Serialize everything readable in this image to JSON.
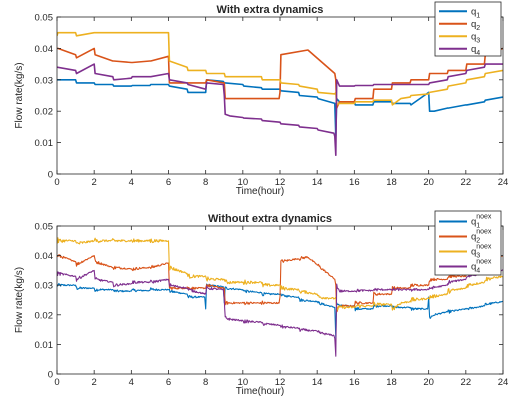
{
  "chart_data": [
    {
      "type": "line",
      "title": "With extra dynamics",
      "xlabel": "Time(hour)",
      "ylabel": "Flow rate(kg/s)",
      "xlim": [
        0,
        24
      ],
      "ylim": [
        0,
        0.05
      ],
      "xticks": [
        "0",
        "2",
        "4",
        "6",
        "8",
        "10",
        "12",
        "14",
        "16",
        "18",
        "20",
        "22",
        "24"
      ],
      "yticks": [
        "0",
        "0.01",
        "0.02",
        "0.03",
        "0.04",
        "0.05"
      ],
      "grid": false,
      "legend_position": "top-right",
      "series": [
        {
          "name": "q",
          "subscript": "1",
          "color": "#0072BD",
          "noise": 0,
          "x": [
            0,
            1,
            1.05,
            2,
            2.05,
            3,
            3.05,
            4,
            4.05,
            5,
            5.05,
            6,
            6.05,
            7,
            7.05,
            8,
            8.05,
            8.95,
            9,
            9.05,
            10,
            10.05,
            11,
            11.05,
            12,
            12.05,
            13,
            13.05,
            14,
            14.05,
            14.95,
            15,
            15.05,
            15.2,
            16,
            16.05,
            17,
            17.05,
            18,
            18.05,
            19,
            19.05,
            20,
            20.05,
            20.3,
            21,
            21.05,
            22,
            22.05,
            23,
            23.05,
            24
          ],
          "y": [
            0.03,
            0.03,
            0.029,
            0.029,
            0.0285,
            0.0285,
            0.028,
            0.028,
            0.0282,
            0.0282,
            0.0285,
            0.0285,
            0.028,
            0.027,
            0.026,
            0.026,
            0.03,
            0.0295,
            0.029,
            0.029,
            0.0285,
            0.028,
            0.0275,
            0.027,
            0.027,
            0.0265,
            0.026,
            0.025,
            0.0245,
            0.024,
            0.0225,
            0.012,
            0.024,
            0.023,
            0.023,
            0.022,
            0.022,
            0.023,
            0.023,
            0.0225,
            0.0225,
            0.022,
            0.026,
            0.02,
            0.02,
            0.021,
            0.021,
            0.022,
            0.022,
            0.023,
            0.0235,
            0.0245
          ]
        },
        {
          "name": "q",
          "subscript": "2",
          "color": "#D95319",
          "noise": 0,
          "x": [
            0,
            0.05,
            1,
            1.05,
            2,
            2.05,
            3,
            3.05,
            4,
            4.05,
            5,
            5.05,
            6,
            6.05,
            8,
            8.05,
            8.95,
            9,
            9.05,
            11.95,
            12,
            12.05,
            13.5,
            14.95,
            15,
            15.05,
            15.2,
            16,
            16.05,
            17,
            17.05,
            18,
            18.05,
            19,
            19.05,
            20,
            20.05,
            21,
            21.05,
            22,
            22.05,
            23,
            23.05,
            24
          ],
          "y": [
            0.04,
            0.04,
            0.038,
            0.037,
            0.04,
            0.038,
            0.036,
            0.036,
            0.0355,
            0.0355,
            0.036,
            0.036,
            0.0375,
            0.029,
            0.029,
            0.03,
            0.029,
            0.029,
            0.024,
            0.024,
            0.026,
            0.038,
            0.0395,
            0.032,
            0.03,
            0.021,
            0.023,
            0.023,
            0.024,
            0.024,
            0.027,
            0.027,
            0.029,
            0.029,
            0.03,
            0.03,
            0.032,
            0.032,
            0.033,
            0.033,
            0.035,
            0.035,
            0.038,
            0.04
          ]
        },
        {
          "name": "q",
          "subscript": "3",
          "color": "#EDB120",
          "noise": 0,
          "x": [
            0,
            0.05,
            1,
            1.05,
            2,
            2.05,
            3,
            4,
            5,
            6,
            6.05,
            7,
            7.05,
            8,
            8.05,
            9,
            9.05,
            10,
            10.05,
            11,
            11.05,
            12,
            12.05,
            13,
            13.05,
            14,
            14.05,
            14.95,
            15,
            15.05,
            15.2,
            16,
            16.05,
            17,
            17.05,
            18,
            18.05,
            18.5,
            19,
            19.05,
            20,
            20.05,
            21,
            21.05,
            22,
            22.05,
            23,
            23.05,
            24
          ],
          "y": [
            0.044,
            0.045,
            0.045,
            0.044,
            0.045,
            0.045,
            0.045,
            0.045,
            0.045,
            0.045,
            0.036,
            0.034,
            0.033,
            0.033,
            0.032,
            0.032,
            0.031,
            0.031,
            0.031,
            0.031,
            0.03,
            0.03,
            0.029,
            0.0285,
            0.028,
            0.027,
            0.026,
            0.0255,
            0.026,
            0.022,
            0.0225,
            0.0225,
            0.023,
            0.023,
            0.0235,
            0.0235,
            0.022,
            0.024,
            0.0245,
            0.025,
            0.0255,
            0.026,
            0.027,
            0.028,
            0.029,
            0.03,
            0.031,
            0.032,
            0.033
          ]
        },
        {
          "name": "q",
          "subscript": "4",
          "color": "#7E2F8E",
          "noise": 0,
          "x": [
            0,
            1,
            1.05,
            2,
            2.05,
            3,
            3.05,
            4,
            4.05,
            5,
            5.05,
            6,
            6.05,
            7,
            7.05,
            8,
            8.05,
            8.95,
            9,
            9.05,
            9.3,
            10,
            10.05,
            11,
            11.05,
            12,
            12.05,
            13,
            13.05,
            14,
            14.05,
            14.9,
            14.95,
            15,
            15.05,
            15.2,
            16,
            16.05,
            17,
            17.05,
            18,
            18.05,
            19,
            19.05,
            20,
            20.05,
            21,
            21.05,
            22,
            22.05,
            23,
            23.05,
            24
          ],
          "y": [
            0.034,
            0.033,
            0.032,
            0.035,
            0.032,
            0.031,
            0.03,
            0.0305,
            0.031,
            0.031,
            0.031,
            0.032,
            0.03,
            0.029,
            0.0285,
            0.027,
            0.029,
            0.0285,
            0.025,
            0.019,
            0.0185,
            0.018,
            0.0178,
            0.0175,
            0.017,
            0.0165,
            0.016,
            0.0155,
            0.015,
            0.0145,
            0.014,
            0.013,
            0.012,
            0.006,
            0.03,
            0.028,
            0.028,
            0.0282,
            0.0282,
            0.0285,
            0.0285,
            0.0285,
            0.0285,
            0.0285,
            0.0285,
            0.029,
            0.03,
            0.031,
            0.032,
            0.033,
            0.034,
            0.035,
            0.035
          ]
        }
      ]
    },
    {
      "type": "line",
      "title": "Without extra dynamics",
      "xlabel": "Time(hour)",
      "ylabel": "Flow rate(kg/s)",
      "xlim": [
        0,
        24
      ],
      "ylim": [
        0,
        0.05
      ],
      "xticks": [
        "0",
        "2",
        "4",
        "6",
        "8",
        "10",
        "12",
        "14",
        "16",
        "18",
        "20",
        "22",
        "24"
      ],
      "yticks": [
        "0",
        "0.01",
        "0.02",
        "0.03",
        "0.04",
        "0.05"
      ],
      "grid": false,
      "legend_position": "top-right",
      "series": [
        {
          "name": "q",
          "subscript": "1",
          "superscript": "noex",
          "color": "#0072BD",
          "noise": 0.0008,
          "x": [
            0,
            1,
            1.05,
            2,
            2.05,
            3,
            3.05,
            4,
            4.05,
            5,
            5.05,
            6,
            6.05,
            7,
            7.05,
            7.95,
            8,
            8.05,
            8.95,
            9,
            9.05,
            10,
            10.05,
            11,
            11.05,
            12,
            12.05,
            13,
            13.05,
            14,
            14.05,
            14.95,
            15,
            15.05,
            15.2,
            16,
            16.05,
            17,
            17.05,
            18,
            18.05,
            19,
            19.05,
            19.95,
            20,
            20.05,
            20.3,
            21,
            21.05,
            22,
            22.05,
            23,
            23.05,
            24
          ],
          "y": [
            0.03,
            0.03,
            0.029,
            0.029,
            0.0285,
            0.0285,
            0.028,
            0.028,
            0.0282,
            0.0282,
            0.0285,
            0.0285,
            0.028,
            0.027,
            0.026,
            0.026,
            0.022,
            0.03,
            0.0295,
            0.024,
            0.029,
            0.0285,
            0.028,
            0.0275,
            0.027,
            0.027,
            0.0265,
            0.026,
            0.025,
            0.0245,
            0.024,
            0.0225,
            0.012,
            0.024,
            0.023,
            0.023,
            0.022,
            0.022,
            0.023,
            0.023,
            0.0225,
            0.0225,
            0.022,
            0.022,
            0.026,
            0.019,
            0.02,
            0.021,
            0.021,
            0.022,
            0.022,
            0.023,
            0.0235,
            0.0245
          ]
        },
        {
          "name": "q",
          "subscript": "2",
          "superscript": "noex",
          "color": "#D95319",
          "noise": 0.0009,
          "x": [
            0,
            0.05,
            1,
            1.05,
            2,
            2.05,
            3,
            3.05,
            4,
            4.05,
            5,
            5.05,
            6,
            6.05,
            8,
            8.05,
            8.95,
            9,
            9.05,
            11.95,
            12,
            12.05,
            13.5,
            14.95,
            15,
            15.05,
            15.2,
            16,
            16.05,
            17,
            17.05,
            18,
            18.05,
            19,
            19.05,
            20,
            20.05,
            21,
            21.05,
            22,
            22.05,
            23,
            23.05,
            24
          ],
          "y": [
            0.04,
            0.04,
            0.038,
            0.037,
            0.04,
            0.038,
            0.036,
            0.036,
            0.0355,
            0.0355,
            0.036,
            0.036,
            0.0375,
            0.029,
            0.029,
            0.03,
            0.029,
            0.029,
            0.024,
            0.024,
            0.026,
            0.038,
            0.0395,
            0.032,
            0.03,
            0.021,
            0.023,
            0.023,
            0.024,
            0.024,
            0.027,
            0.027,
            0.029,
            0.029,
            0.03,
            0.03,
            0.032,
            0.032,
            0.033,
            0.033,
            0.035,
            0.035,
            0.038,
            0.04
          ]
        },
        {
          "name": "q",
          "subscript": "3",
          "superscript": "noex",
          "color": "#EDB120",
          "noise": 0.0012,
          "x": [
            0,
            0.05,
            1,
            1.05,
            2,
            2.05,
            3,
            4,
            5,
            6,
            6.05,
            7,
            7.05,
            8,
            8.05,
            9,
            9.05,
            10,
            10.05,
            11,
            11.05,
            12,
            12.05,
            13,
            13.05,
            14,
            14.05,
            14.95,
            15,
            15.05,
            15.2,
            16,
            16.05,
            17,
            17.05,
            18,
            18.05,
            18.5,
            19,
            19.05,
            20,
            20.05,
            21,
            21.05,
            22,
            22.05,
            23,
            23.05,
            24
          ],
          "y": [
            0.044,
            0.045,
            0.045,
            0.044,
            0.045,
            0.045,
            0.045,
            0.045,
            0.045,
            0.045,
            0.036,
            0.034,
            0.033,
            0.033,
            0.032,
            0.032,
            0.031,
            0.031,
            0.031,
            0.031,
            0.03,
            0.03,
            0.029,
            0.0285,
            0.028,
            0.027,
            0.026,
            0.0255,
            0.026,
            0.022,
            0.0225,
            0.0225,
            0.023,
            0.023,
            0.0235,
            0.0235,
            0.022,
            0.024,
            0.0245,
            0.025,
            0.0255,
            0.026,
            0.027,
            0.028,
            0.029,
            0.03,
            0.031,
            0.032,
            0.033
          ]
        },
        {
          "name": "q",
          "subscript": "4",
          "superscript": "noex",
          "color": "#7E2F8E",
          "noise": 0.0009,
          "x": [
            0,
            1,
            1.05,
            2,
            2.05,
            3,
            3.05,
            4,
            4.05,
            5,
            5.05,
            6,
            6.05,
            7,
            7.05,
            8,
            8.05,
            8.95,
            9,
            9.05,
            9.3,
            10,
            10.05,
            11,
            11.05,
            12,
            12.05,
            13,
            13.05,
            14,
            14.05,
            14.9,
            14.95,
            15,
            15.05,
            15.2,
            16,
            16.05,
            17,
            17.05,
            18,
            18.05,
            19,
            19.05,
            20,
            20.05,
            21,
            21.05,
            22,
            22.05,
            23,
            23.05,
            24
          ],
          "y": [
            0.034,
            0.033,
            0.032,
            0.035,
            0.032,
            0.031,
            0.03,
            0.0305,
            0.031,
            0.031,
            0.031,
            0.032,
            0.03,
            0.029,
            0.0285,
            0.027,
            0.029,
            0.0285,
            0.025,
            0.019,
            0.0185,
            0.018,
            0.0178,
            0.0175,
            0.017,
            0.0165,
            0.016,
            0.0155,
            0.015,
            0.0145,
            0.014,
            0.013,
            0.012,
            0.006,
            0.03,
            0.028,
            0.028,
            0.0282,
            0.0282,
            0.0285,
            0.0285,
            0.0285,
            0.0285,
            0.0285,
            0.0285,
            0.029,
            0.03,
            0.031,
            0.032,
            0.033,
            0.034,
            0.035,
            0.035
          ]
        }
      ]
    }
  ]
}
